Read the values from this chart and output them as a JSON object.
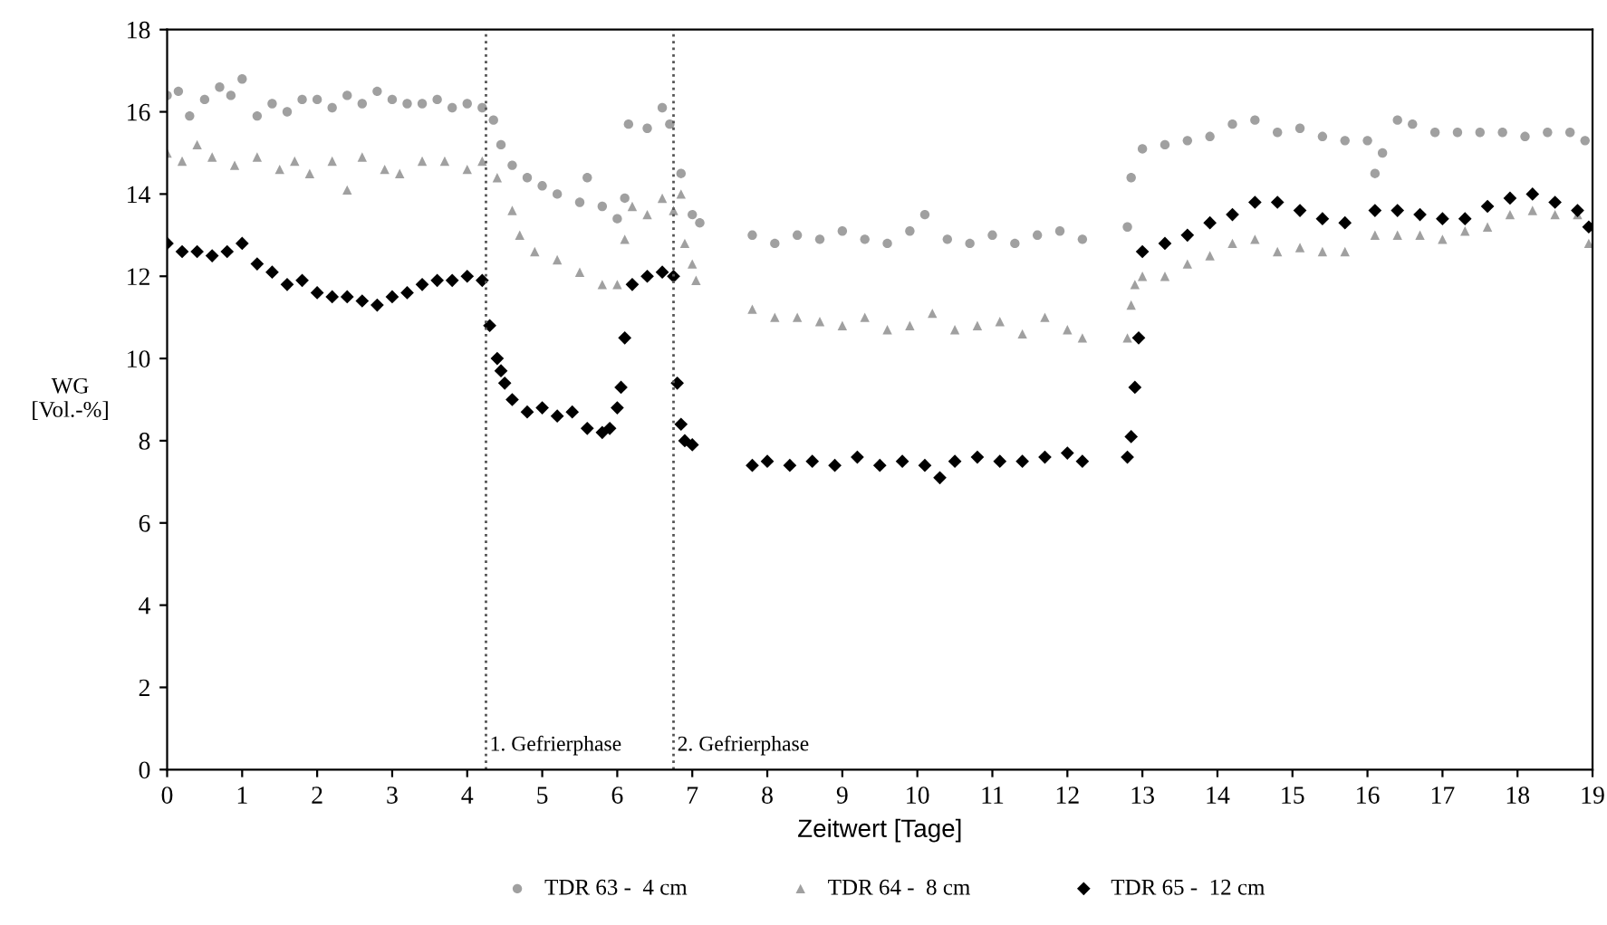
{
  "chart_data": {
    "type": "scatter",
    "xlabel": "Zeitwert [Tage]",
    "ylabel": "WG\n[Vol.-%]",
    "xlim": [
      0,
      19
    ],
    "ylim": [
      0,
      18
    ],
    "xticks": [
      0,
      1,
      2,
      3,
      4,
      5,
      6,
      7,
      8,
      9,
      10,
      11,
      12,
      13,
      14,
      15,
      16,
      17,
      18,
      19
    ],
    "yticks": [
      0,
      2,
      4,
      6,
      8,
      10,
      12,
      14,
      16,
      18
    ],
    "grid": false,
    "legend": "bottom",
    "ref_lines": [
      {
        "axis": "x",
        "value": 4.25,
        "label": "1. Gefrierphase",
        "line_style": "dotted",
        "color": "#555555"
      },
      {
        "axis": "x",
        "value": 6.75,
        "label": "2. Gefrierphase",
        "line_style": "dotted",
        "color": "#555555"
      }
    ],
    "series": [
      {
        "name": "TDR 63 -  4 cm",
        "color": "#a0a0a0",
        "marker": "circle",
        "x": [
          0,
          0.15,
          0.3,
          0.5,
          0.7,
          0.85,
          1.0,
          1.2,
          1.4,
          1.6,
          1.8,
          2.0,
          2.2,
          2.4,
          2.6,
          2.8,
          3.0,
          3.2,
          3.4,
          3.6,
          3.8,
          4.0,
          4.2,
          4.35,
          4.45,
          4.6,
          4.8,
          5.0,
          5.2,
          5.5,
          5.6,
          5.8,
          6.0,
          6.1,
          6.15,
          6.4,
          6.6,
          6.7,
          6.85,
          7.0,
          7.1,
          7.8,
          8.1,
          8.4,
          8.7,
          9.0,
          9.3,
          9.6,
          9.9,
          10.1,
          10.4,
          10.7,
          11.0,
          11.3,
          11.6,
          11.9,
          12.2,
          12.8,
          12.85,
          13.0,
          13.3,
          13.6,
          13.9,
          14.2,
          14.5,
          14.8,
          15.1,
          15.4,
          15.7,
          16.0,
          16.1,
          16.2,
          16.4,
          16.6,
          16.9,
          17.2,
          17.5,
          17.8,
          18.1,
          18.4,
          18.7,
          18.9
        ],
        "values": [
          16.4,
          16.5,
          15.9,
          16.3,
          16.6,
          16.4,
          16.8,
          15.9,
          16.2,
          16.0,
          16.3,
          16.3,
          16.1,
          16.4,
          16.2,
          16.5,
          16.3,
          16.2,
          16.2,
          16.3,
          16.1,
          16.2,
          16.1,
          15.8,
          15.2,
          14.7,
          14.4,
          14.2,
          14.0,
          13.8,
          14.4,
          13.7,
          13.4,
          13.9,
          15.7,
          15.6,
          16.1,
          15.7,
          14.5,
          13.5,
          13.3,
          13.0,
          12.8,
          13.0,
          12.9,
          13.1,
          12.9,
          12.8,
          13.1,
          13.5,
          12.9,
          12.8,
          13.0,
          12.8,
          13.0,
          13.1,
          12.9,
          13.2,
          14.4,
          15.1,
          15.2,
          15.3,
          15.4,
          15.7,
          15.8,
          15.5,
          15.6,
          15.4,
          15.3,
          15.3,
          14.5,
          15.0,
          15.8,
          15.7,
          15.5,
          15.5,
          15.5,
          15.5,
          15.4,
          15.5,
          15.5,
          15.3
        ]
      },
      {
        "name": "TDR 64 -  8 cm",
        "color": "#a0a0a0",
        "marker": "triangle",
        "x": [
          0,
          0.2,
          0.4,
          0.6,
          0.9,
          1.2,
          1.5,
          1.7,
          1.9,
          2.2,
          2.4,
          2.6,
          2.9,
          3.1,
          3.4,
          3.7,
          4.0,
          4.2,
          4.4,
          4.6,
          4.7,
          4.9,
          5.2,
          5.5,
          5.8,
          6.0,
          6.1,
          6.2,
          6.4,
          6.6,
          6.75,
          6.85,
          6.9,
          7.0,
          7.05,
          7.8,
          8.1,
          8.4,
          8.7,
          9.0,
          9.3,
          9.6,
          9.9,
          10.2,
          10.5,
          10.8,
          11.1,
          11.4,
          11.7,
          12.0,
          12.2,
          12.8,
          12.85,
          12.9,
          13.0,
          13.3,
          13.6,
          13.9,
          14.2,
          14.5,
          14.8,
          15.1,
          15.4,
          15.7,
          16.1,
          16.4,
          16.7,
          17.0,
          17.3,
          17.6,
          17.9,
          18.2,
          18.5,
          18.8,
          18.95
        ],
        "values": [
          15.0,
          14.8,
          15.2,
          14.9,
          14.7,
          14.9,
          14.6,
          14.8,
          14.5,
          14.8,
          14.1,
          14.9,
          14.6,
          14.5,
          14.8,
          14.8,
          14.6,
          14.8,
          14.4,
          13.6,
          13.0,
          12.6,
          12.4,
          12.1,
          11.8,
          11.8,
          12.9,
          13.7,
          13.5,
          13.9,
          13.6,
          14.0,
          12.8,
          12.3,
          11.9,
          11.2,
          11.0,
          11.0,
          10.9,
          10.8,
          11.0,
          10.7,
          10.8,
          11.1,
          10.7,
          10.8,
          10.9,
          10.6,
          11.0,
          10.7,
          10.5,
          10.5,
          11.3,
          11.8,
          12.0,
          12.0,
          12.3,
          12.5,
          12.8,
          12.9,
          12.6,
          12.7,
          12.6,
          12.6,
          13.0,
          13.0,
          13.0,
          12.9,
          13.1,
          13.2,
          13.5,
          13.6,
          13.5,
          13.5,
          12.8
        ]
      },
      {
        "name": "TDR 65 -  12 cm",
        "color": "#000000",
        "marker": "diamond",
        "x": [
          0,
          0.2,
          0.4,
          0.6,
          0.8,
          1.0,
          1.2,
          1.4,
          1.6,
          1.8,
          2.0,
          2.2,
          2.4,
          2.6,
          2.8,
          3.0,
          3.2,
          3.4,
          3.6,
          3.8,
          4.0,
          4.2,
          4.3,
          4.4,
          4.45,
          4.5,
          4.6,
          4.8,
          5.0,
          5.2,
          5.4,
          5.6,
          5.8,
          5.9,
          6.0,
          6.05,
          6.1,
          6.2,
          6.4,
          6.6,
          6.75,
          6.8,
          6.85,
          6.9,
          7.0,
          7.8,
          8.0,
          8.3,
          8.6,
          8.9,
          9.2,
          9.5,
          9.8,
          10.1,
          10.3,
          10.5,
          10.8,
          11.1,
          11.4,
          11.7,
          12.0,
          12.2,
          12.8,
          12.85,
          12.9,
          12.95,
          13.0,
          13.3,
          13.6,
          13.9,
          14.2,
          14.5,
          14.8,
          15.1,
          15.4,
          15.7,
          16.1,
          16.4,
          16.7,
          17.0,
          17.3,
          17.6,
          17.9,
          18.2,
          18.5,
          18.8,
          18.95
        ],
        "values": [
          12.8,
          12.6,
          12.6,
          12.5,
          12.6,
          12.8,
          12.3,
          12.1,
          11.8,
          11.9,
          11.6,
          11.5,
          11.5,
          11.4,
          11.3,
          11.5,
          11.6,
          11.8,
          11.9,
          11.9,
          12.0,
          11.9,
          10.8,
          10.0,
          9.7,
          9.4,
          9.0,
          8.7,
          8.8,
          8.6,
          8.7,
          8.3,
          8.2,
          8.3,
          8.8,
          9.3,
          10.5,
          11.8,
          12.0,
          12.1,
          12.0,
          9.4,
          8.4,
          8.0,
          7.9,
          7.4,
          7.5,
          7.4,
          7.5,
          7.4,
          7.6,
          7.4,
          7.5,
          7.4,
          7.1,
          7.5,
          7.6,
          7.5,
          7.5,
          7.6,
          7.7,
          7.5,
          7.6,
          8.1,
          9.3,
          10.5,
          12.6,
          12.8,
          13.0,
          13.3,
          13.5,
          13.8,
          13.8,
          13.6,
          13.4,
          13.3,
          13.6,
          13.6,
          13.5,
          13.4,
          13.4,
          13.7,
          13.9,
          14.0,
          13.8,
          13.6,
          13.2
        ]
      }
    ]
  }
}
